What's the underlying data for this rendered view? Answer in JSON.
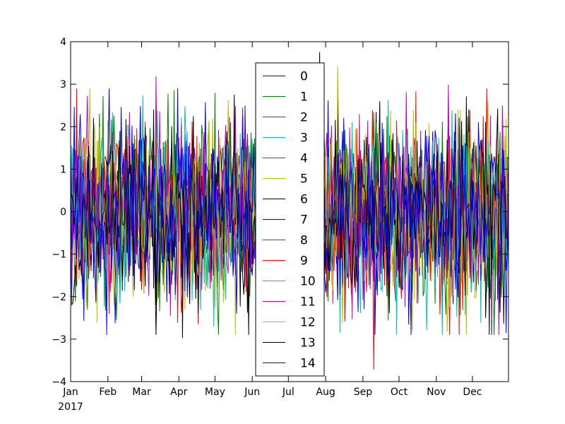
{
  "chart_data": {
    "type": "line",
    "title": "",
    "xlabel": "",
    "ylabel": "",
    "x_start": "2017-01-01",
    "x_end": "2017-12-31",
    "x_frequency": "daily",
    "xlim": [
      "2017-01-01",
      "2017-12-31"
    ],
    "ylim": [
      -4,
      4
    ],
    "grid": false,
    "legend_position": "upper center",
    "x_ticks": [
      {
        "date": "2017-01-01",
        "label": "Jan"
      },
      {
        "date": "2017-02-01",
        "label": "Feb"
      },
      {
        "date": "2017-03-01",
        "label": "Mar"
      },
      {
        "date": "2017-04-01",
        "label": "Apr"
      },
      {
        "date": "2017-05-01",
        "label": "May"
      },
      {
        "date": "2017-06-01",
        "label": "Jun"
      },
      {
        "date": "2017-07-01",
        "label": "Jul"
      },
      {
        "date": "2017-08-01",
        "label": "Aug"
      },
      {
        "date": "2017-09-01",
        "label": "Sep"
      },
      {
        "date": "2017-10-01",
        "label": "Oct"
      },
      {
        "date": "2017-11-01",
        "label": "Nov"
      },
      {
        "date": "2017-12-01",
        "label": "Dec"
      }
    ],
    "x_year_label": "2017",
    "y_ticks": [
      {
        "value": 4,
        "label": "4"
      },
      {
        "value": 3,
        "label": "3"
      },
      {
        "value": 2,
        "label": "2"
      },
      {
        "value": 1,
        "label": "1"
      },
      {
        "value": 0,
        "label": "0"
      },
      {
        "value": -1,
        "label": "−1"
      },
      {
        "value": -2,
        "label": "−2"
      },
      {
        "value": -3,
        "label": "−3"
      },
      {
        "value": -4,
        "label": "−4"
      }
    ],
    "series": [
      {
        "name": "0",
        "color": "#0000ff"
      },
      {
        "name": "1",
        "color": "#008000"
      },
      {
        "name": "2",
        "color": "#ff0000"
      },
      {
        "name": "3",
        "color": "#00bfbf"
      },
      {
        "name": "4",
        "color": "#bf00bf"
      },
      {
        "name": "5",
        "color": "#bfbf00"
      },
      {
        "name": "6",
        "color": "#000000"
      },
      {
        "name": "7",
        "color": "#0000ff"
      },
      {
        "name": "8",
        "color": "#008000"
      },
      {
        "name": "9",
        "color": "#ff0000"
      },
      {
        "name": "10",
        "color": "#00bfbf"
      },
      {
        "name": "11",
        "color": "#bf00bf"
      },
      {
        "name": "12",
        "color": "#bfbf00"
      },
      {
        "name": "13",
        "color": "#000000"
      },
      {
        "name": "14",
        "color": "#0000ff"
      }
    ],
    "notable_values": [
      {
        "series": "6",
        "date": "2017-04-04",
        "value": -2.98
      },
      {
        "series": "9",
        "date": "2017-09-10",
        "value": -3.72
      },
      {
        "series": "4",
        "date": "2017-03-13",
        "value": 3.18
      },
      {
        "series": "12",
        "date": "2017-08-11",
        "value": 3.42
      },
      {
        "series": "6",
        "date": "2017-07-27",
        "value": 3.75
      },
      {
        "series": "11",
        "date": "2017-11-11",
        "value": 2.99
      }
    ]
  }
}
